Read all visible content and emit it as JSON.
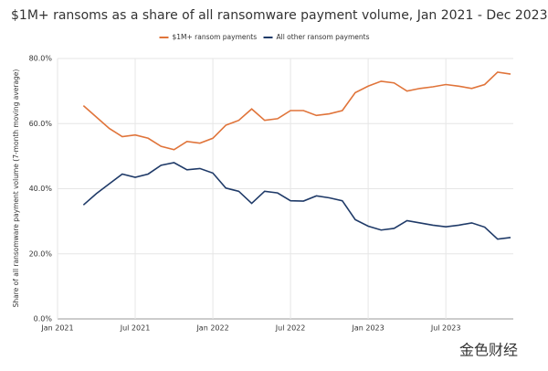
{
  "chart_data": {
    "type": "line",
    "title": "$1M+ ransoms as a share of all ransomware payment volume, Jan 2021 - Dec 2023",
    "y_label": "Share of all ransomware payment volume (7-month moving average)",
    "watermark": "金色财经",
    "x": [
      "2021-03",
      "2021-04",
      "2021-05",
      "2021-06",
      "2021-07",
      "2021-08",
      "2021-09",
      "2021-10",
      "2021-11",
      "2021-12",
      "2022-01",
      "2022-02",
      "2022-03",
      "2022-04",
      "2022-05",
      "2022-06",
      "2022-07",
      "2022-08",
      "2022-09",
      "2022-10",
      "2022-11",
      "2022-12",
      "2023-01",
      "2023-02",
      "2023-03",
      "2023-04",
      "2023-05",
      "2023-06",
      "2023-07",
      "2023-08",
      "2023-09",
      "2023-10",
      "2023-11",
      "2023-12"
    ],
    "series": [
      {
        "name": "$1M+ ransom payments",
        "color": "#e0743a",
        "values": [
          65.5,
          62,
          58.5,
          56,
          56.5,
          55.5,
          53,
          52,
          54.5,
          54,
          55.5,
          59.5,
          61,
          64.5,
          61,
          61.5,
          64,
          64,
          62.5,
          63,
          64,
          69.5,
          71.5,
          73,
          72.5,
          70,
          70.8,
          71.3,
          72,
          71.5,
          70.8,
          72,
          75.8,
          75.2
        ]
      },
      {
        "name": "All other ransom payments",
        "color": "#1f3a68",
        "values": [
          35,
          38.5,
          41.5,
          44.5,
          43.5,
          44.5,
          47.2,
          48,
          45.8,
          46.2,
          44.8,
          40.2,
          39.2,
          35.5,
          39.2,
          38.7,
          36.3,
          36.2,
          37.8,
          37.2,
          36.3,
          30.5,
          28.5,
          27.3,
          27.8,
          30.2,
          29.5,
          28.8,
          28.3,
          28.8,
          29.5,
          28.2,
          24.5,
          25
        ]
      }
    ],
    "xlim": [
      "2021-01",
      "2023-12"
    ],
    "xticks": [
      {
        "value": "2021-01",
        "label": "Jan 2021"
      },
      {
        "value": "2021-07",
        "label": "Jul 2021"
      },
      {
        "value": "2022-01",
        "label": "Jan 2022"
      },
      {
        "value": "2022-07",
        "label": "Jul 2022"
      },
      {
        "value": "2023-01",
        "label": "Jan 2023"
      },
      {
        "value": "2023-07",
        "label": "Jul 2023"
      }
    ],
    "ylim": [
      0,
      80
    ],
    "yticks": [
      {
        "value": 0,
        "label": "0.0%"
      },
      {
        "value": 20,
        "label": "20.0%"
      },
      {
        "value": 40,
        "label": "40.0%"
      },
      {
        "value": 60,
        "label": "60.0%"
      },
      {
        "value": 80,
        "label": "80.0%"
      }
    ],
    "grid": true,
    "legend": "top"
  }
}
